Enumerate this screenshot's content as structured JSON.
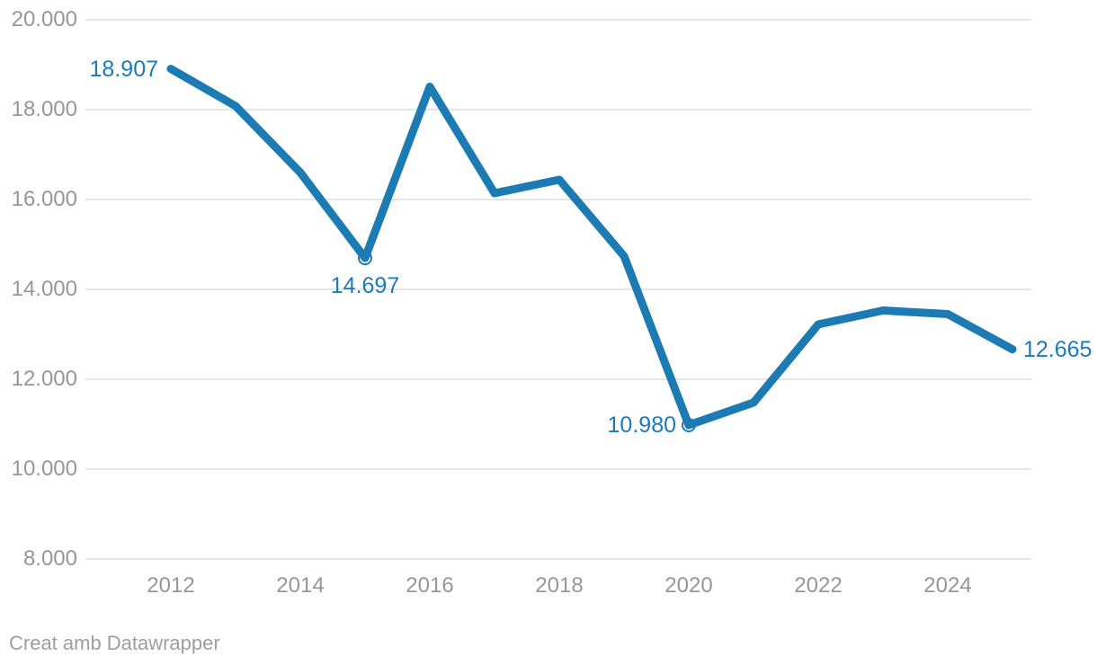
{
  "chart_data": {
    "type": "line",
    "title": "",
    "xlabel": "",
    "ylabel": "",
    "legend": "none",
    "grid": "horizontal",
    "xlim": [
      2012,
      2025
    ],
    "ylim": [
      8000,
      20000
    ],
    "x": [
      2012,
      2013,
      2014,
      2015,
      2016,
      2017,
      2018,
      2019,
      2020,
      2021,
      2022,
      2023,
      2024,
      2025
    ],
    "values": [
      18907,
      18080,
      16600,
      14697,
      18510,
      16140,
      16440,
      14740,
      10980,
      11480,
      13220,
      13530,
      13450,
      12665
    ],
    "y_ticks": [
      {
        "value": 20000,
        "label": "20.000"
      },
      {
        "value": 18000,
        "label": "18.000"
      },
      {
        "value": 16000,
        "label": "16.000"
      },
      {
        "value": 14000,
        "label": "14.000"
      },
      {
        "value": 12000,
        "label": "12.000"
      },
      {
        "value": 10000,
        "label": "10.000"
      },
      {
        "value": 8000,
        "label": "8.000"
      }
    ],
    "x_ticks": [
      2012,
      2014,
      2016,
      2018,
      2020,
      2022,
      2024
    ],
    "markers": [
      {
        "year": 2015
      },
      {
        "year": 2020
      }
    ],
    "point_labels": [
      {
        "year": 2012,
        "text": "18.907",
        "position": "left"
      },
      {
        "year": 2015,
        "text": "14.697",
        "position": "below"
      },
      {
        "year": 2020,
        "text": "10.980",
        "position": "left"
      },
      {
        "year": 2025,
        "text": "12.665",
        "position": "right"
      }
    ],
    "number_format": "thousands with dot separator"
  },
  "colors": {
    "line": "#1d7bb4",
    "marker_fill": "#ffffff",
    "grid": "#e6e6e6",
    "axis_text": "#979797",
    "footer_text": "#9e9e9e",
    "background": "#ffffff"
  },
  "footer": {
    "prefix": "Creat amb",
    "brand": "Datawrapper"
  }
}
